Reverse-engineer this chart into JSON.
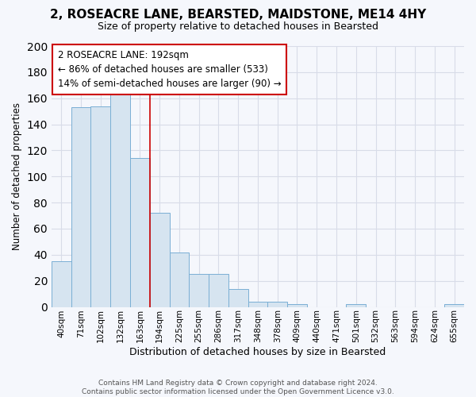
{
  "title": "2, ROSEACRE LANE, BEARSTED, MAIDSTONE, ME14 4HY",
  "subtitle": "Size of property relative to detached houses in Bearsted",
  "xlabel": "Distribution of detached houses by size in Bearsted",
  "ylabel": "Number of detached properties",
  "footer1": "Contains HM Land Registry data © Crown copyright and database right 2024.",
  "footer2": "Contains public sector information licensed under the Open Government Licence v3.0.",
  "bar_color": "#d6e4f0",
  "bar_edge_color": "#7aafd4",
  "annotation_edge_color": "#cc0000",
  "annotation_text": "2 ROSEACRE LANE: 192sqm\n← 86% of detached houses are smaller (533)\n14% of semi-detached houses are larger (90) →",
  "vline_index": 5,
  "vline_color": "#cc0000",
  "categories": [
    "40sqm",
    "71sqm",
    "102sqm",
    "132sqm",
    "163sqm",
    "194sqm",
    "225sqm",
    "255sqm",
    "286sqm",
    "317sqm",
    "348sqm",
    "378sqm",
    "409sqm",
    "440sqm",
    "471sqm",
    "501sqm",
    "532sqm",
    "563sqm",
    "594sqm",
    "624sqm",
    "655sqm"
  ],
  "values": [
    35,
    153,
    154,
    163,
    114,
    72,
    42,
    25,
    25,
    14,
    4,
    4,
    2,
    0,
    0,
    2,
    0,
    0,
    0,
    0,
    2
  ],
  "ylim": [
    0,
    200
  ],
  "yticks": [
    0,
    20,
    40,
    60,
    80,
    100,
    120,
    140,
    160,
    180,
    200
  ],
  "background_color": "#f5f7fc",
  "grid_color": "#d8dce8",
  "title_fontsize": 11,
  "subtitle_fontsize": 9
}
